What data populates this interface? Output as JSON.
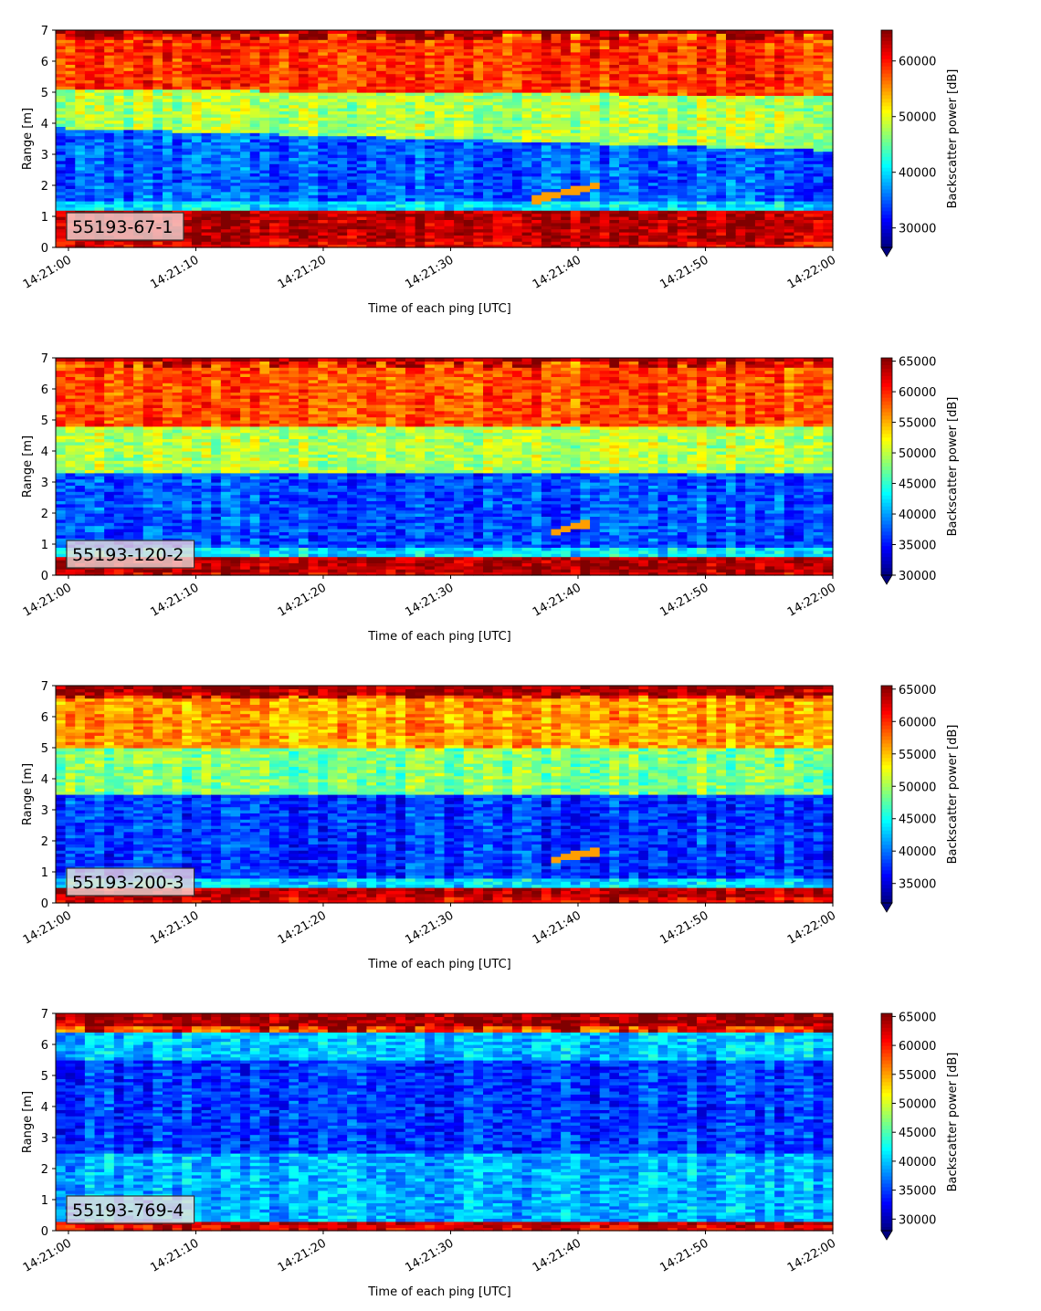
{
  "chart_data": [
    {
      "type": "heatmap",
      "tag": "55193-67-1",
      "xlabel": "Time of each ping [UTC]",
      "ylabel": "Range [m]",
      "xticks": [
        "14:21:00",
        "14:21:10",
        "14:21:20",
        "14:21:30",
        "14:21:40",
        "14:21:50",
        "14:22:00"
      ],
      "xlim": [
        "14:20:59",
        "14:22:00"
      ],
      "ylim": [
        0,
        7
      ],
      "yticks": [
        "0",
        "1",
        "2",
        "3",
        "4",
        "5",
        "6",
        "7"
      ],
      "colorbar": {
        "label": "Backscatter power [dB]",
        "colormap": "jet",
        "range": [
          26500,
          65535
        ],
        "extend": "min",
        "ticks": [
          "30000",
          "40000",
          "50000",
          "60000"
        ],
        "tick_values": [
          30000,
          40000,
          50000,
          60000
        ]
      },
      "pattern": {
        "surface_band": [
          0.25,
          1.15
        ],
        "top_band": [
          6.7,
          7.0
        ],
        "low_layer": [
          1.5,
          3.5
        ],
        "mid_layer": [
          3.5,
          5.0
        ],
        "upper_layer": [
          5.0,
          6.7
        ],
        "level_low": 0.22,
        "level_mid": 0.55,
        "level_upper": 0.83,
        "streak": {
          "t0": 36,
          "t1": 41.5,
          "r0": 1.5,
          "r1": 2.0
        }
      }
    },
    {
      "type": "heatmap",
      "tag": "55193-120-2",
      "xlabel": "Time of each ping [UTC]",
      "ylabel": "Range [m]",
      "xticks": [
        "14:21:00",
        "14:21:10",
        "14:21:20",
        "14:21:30",
        "14:21:40",
        "14:21:50",
        "14:22:00"
      ],
      "xlim": [
        "14:20:59",
        "14:22:00"
      ],
      "ylim": [
        0,
        7
      ],
      "yticks": [
        "0",
        "1",
        "2",
        "3",
        "4",
        "5",
        "6",
        "7"
      ],
      "colorbar": {
        "label": "Backscatter power [dB]",
        "colormap": "jet",
        "range": [
          30000,
          65535
        ],
        "extend": "min",
        "ticks": [
          "30000",
          "35000",
          "40000",
          "45000",
          "50000",
          "55000",
          "60000",
          "65000"
        ],
        "tick_values": [
          30000,
          35000,
          40000,
          45000,
          50000,
          55000,
          60000,
          65000
        ]
      },
      "pattern": {
        "surface_band": [
          0.15,
          0.6
        ],
        "top_band": [
          6.7,
          7.0
        ],
        "low_layer": [
          0.8,
          3.3
        ],
        "mid_layer": [
          3.3,
          4.8
        ],
        "upper_layer": [
          4.8,
          6.7
        ],
        "level_low": 0.2,
        "level_mid": 0.55,
        "level_upper": 0.8,
        "streak": {
          "t0": 38,
          "t1": 41,
          "r0": 1.4,
          "r1": 1.7
        }
      }
    },
    {
      "type": "heatmap",
      "tag": "55193-200-3",
      "xlabel": "Time of each ping [UTC]",
      "ylabel": "Range [m]",
      "xticks": [
        "14:21:00",
        "14:21:10",
        "14:21:20",
        "14:21:30",
        "14:21:40",
        "14:21:50",
        "14:22:00"
      ],
      "xlim": [
        "14:20:59",
        "14:22:00"
      ],
      "ylim": [
        0,
        7
      ],
      "yticks": [
        "0",
        "1",
        "2",
        "3",
        "4",
        "5",
        "6",
        "7"
      ],
      "colorbar": {
        "label": "Backscatter power [dB]",
        "colormap": "jet",
        "range": [
          32000,
          65535
        ],
        "extend": "min",
        "ticks": [
          "35000",
          "40000",
          "45000",
          "50000",
          "55000",
          "60000",
          "65000"
        ],
        "tick_values": [
          35000,
          40000,
          45000,
          50000,
          55000,
          60000,
          65000
        ]
      },
      "pattern": {
        "surface_band": [
          0.2,
          0.45
        ],
        "top_band": [
          6.6,
          7.0
        ],
        "low_layer": [
          0.5,
          3.5
        ],
        "mid_layer": [
          3.5,
          5.0
        ],
        "upper_layer": [
          5.0,
          6.6
        ],
        "level_low": 0.18,
        "level_mid": 0.5,
        "level_upper": 0.72,
        "streak": {
          "t0": 38,
          "t1": 42,
          "r0": 1.4,
          "r1": 1.7
        }
      }
    },
    {
      "type": "heatmap",
      "tag": "55193-769-4",
      "xlabel": "Time of each ping [UTC]",
      "ylabel": "Range [m]",
      "xticks": [
        "14:21:00",
        "14:21:10",
        "14:21:20",
        "14:21:30",
        "14:21:40",
        "14:21:50",
        "14:22:00"
      ],
      "xlim": [
        "14:20:59",
        "14:22:00"
      ],
      "ylim": [
        0,
        7
      ],
      "yticks": [
        "0",
        "1",
        "2",
        "3",
        "4",
        "5",
        "6",
        "7"
      ],
      "colorbar": {
        "label": "Backscatter power [dB]",
        "colormap": "jet",
        "range": [
          28000,
          65535
        ],
        "extend": "min",
        "ticks": [
          "30000",
          "35000",
          "40000",
          "45000",
          "50000",
          "55000",
          "60000",
          "65000"
        ],
        "tick_values": [
          30000,
          35000,
          40000,
          45000,
          50000,
          55000,
          60000,
          65000
        ]
      },
      "pattern": {
        "surface_band": [
          0.18,
          0.32
        ],
        "top_band": [
          6.4,
          6.8
        ],
        "low_layer": [
          0.35,
          2.5
        ],
        "mid_layer": [
          2.5,
          5.5
        ],
        "upper_layer": [
          5.5,
          6.4
        ],
        "level_low": 0.3,
        "level_mid": 0.18,
        "level_upper": 0.32,
        "streak": null
      }
    }
  ]
}
